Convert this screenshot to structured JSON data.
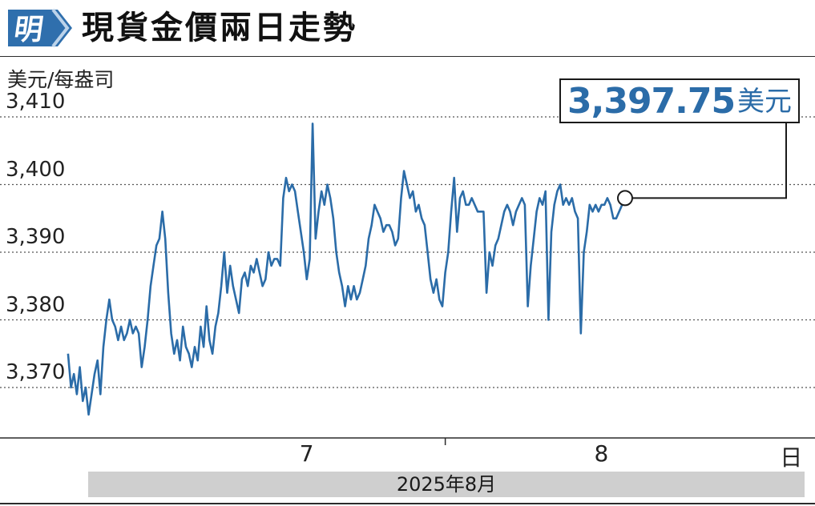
{
  "header": {
    "logo_char": "明",
    "title": "現貨金價兩日走勢"
  },
  "callout": {
    "value": "3,397.75",
    "unit": "美元"
  },
  "colors": {
    "series": "#2b6ca8",
    "logo": "#2f6fad",
    "band": "#cfcfcf"
  },
  "chart_data": {
    "type": "line",
    "title": "現貨金價兩日走勢",
    "ylabel": "美元/每盎司",
    "xlabel": "2025年8月",
    "ylim": [
      3364,
      3412
    ],
    "yticks": [
      3410,
      3400,
      3390,
      3380,
      3370
    ],
    "ytick_labels": [
      "3,410",
      "3,400",
      "3,390",
      "3,380",
      "3,370"
    ],
    "xticks": [
      {
        "label": "7",
        "x": 7.0
      },
      {
        "label": "8",
        "x": 8.0
      },
      {
        "label": "日",
        "x": 8.63
      }
    ],
    "annotation": {
      "text": "3,397.75美元",
      "x": 8.55,
      "y": 3397.75
    },
    "grid": true,
    "series": [
      {
        "values": [
          [
            6.19,
            3375
          ],
          [
            6.2,
            3370
          ],
          [
            6.21,
            3372
          ],
          [
            6.22,
            3369
          ],
          [
            6.23,
            3373
          ],
          [
            6.24,
            3368
          ],
          [
            6.25,
            3370
          ],
          [
            6.26,
            3366
          ],
          [
            6.27,
            3369
          ],
          [
            6.28,
            3372
          ],
          [
            6.29,
            3374
          ],
          [
            6.3,
            3369
          ],
          [
            6.31,
            3376
          ],
          [
            6.32,
            3380
          ],
          [
            6.33,
            3383
          ],
          [
            6.34,
            3380
          ],
          [
            6.35,
            3379
          ],
          [
            6.36,
            3377
          ],
          [
            6.37,
            3379
          ],
          [
            6.38,
            3377
          ],
          [
            6.39,
            3378
          ],
          [
            6.4,
            3380
          ],
          [
            6.41,
            3378
          ],
          [
            6.42,
            3379
          ],
          [
            6.43,
            3378
          ],
          [
            6.44,
            3373
          ],
          [
            6.45,
            3376
          ],
          [
            6.46,
            3380
          ],
          [
            6.47,
            3385
          ],
          [
            6.48,
            3388
          ],
          [
            6.49,
            3391
          ],
          [
            6.5,
            3392
          ],
          [
            6.51,
            3396
          ],
          [
            6.52,
            3392
          ],
          [
            6.53,
            3384
          ],
          [
            6.54,
            3378
          ],
          [
            6.55,
            3375
          ],
          [
            6.56,
            3377
          ],
          [
            6.57,
            3374
          ],
          [
            6.58,
            3379
          ],
          [
            6.59,
            3376
          ],
          [
            6.6,
            3375
          ],
          [
            6.61,
            3373
          ],
          [
            6.62,
            3376
          ],
          [
            6.63,
            3374
          ],
          [
            6.64,
            3379
          ],
          [
            6.65,
            3376
          ],
          [
            6.66,
            3382
          ],
          [
            6.67,
            3377
          ],
          [
            6.68,
            3375
          ],
          [
            6.69,
            3379
          ],
          [
            6.7,
            3381
          ],
          [
            6.71,
            3385
          ],
          [
            6.72,
            3390
          ],
          [
            6.73,
            3384
          ],
          [
            6.74,
            3388
          ],
          [
            6.75,
            3385
          ],
          [
            6.76,
            3383
          ],
          [
            6.77,
            3381
          ],
          [
            6.78,
            3386
          ],
          [
            6.79,
            3387
          ],
          [
            6.8,
            3385
          ],
          [
            6.81,
            3388
          ],
          [
            6.82,
            3387
          ],
          [
            6.83,
            3389
          ],
          [
            6.84,
            3387
          ],
          [
            6.85,
            3385
          ],
          [
            6.86,
            3386
          ],
          [
            6.87,
            3390
          ],
          [
            6.88,
            3388
          ],
          [
            6.89,
            3389
          ],
          [
            6.9,
            3389
          ],
          [
            6.91,
            3388
          ],
          [
            6.92,
            3398
          ],
          [
            6.93,
            3401
          ],
          [
            6.94,
            3399
          ],
          [
            6.95,
            3400
          ],
          [
            6.96,
            3399
          ],
          [
            6.97,
            3396
          ],
          [
            6.98,
            3393
          ],
          [
            6.99,
            3390
          ],
          [
            7.0,
            3386
          ],
          [
            7.01,
            3389
          ],
          [
            7.02,
            3409
          ],
          [
            7.03,
            3392
          ],
          [
            7.04,
            3396
          ],
          [
            7.05,
            3399
          ],
          [
            7.06,
            3397
          ],
          [
            7.07,
            3400
          ],
          [
            7.08,
            3398
          ],
          [
            7.09,
            3395
          ],
          [
            7.1,
            3390
          ],
          [
            7.11,
            3387
          ],
          [
            7.12,
            3385
          ],
          [
            7.13,
            3382
          ],
          [
            7.14,
            3385
          ],
          [
            7.15,
            3383
          ],
          [
            7.16,
            3385
          ],
          [
            7.17,
            3383
          ],
          [
            7.18,
            3384
          ],
          [
            7.19,
            3386
          ],
          [
            7.2,
            3388
          ],
          [
            7.21,
            3392
          ],
          [
            7.22,
            3394
          ],
          [
            7.23,
            3397
          ],
          [
            7.24,
            3396
          ],
          [
            7.25,
            3395
          ],
          [
            7.26,
            3393
          ],
          [
            7.27,
            3394
          ],
          [
            7.28,
            3394
          ],
          [
            7.29,
            3393
          ],
          [
            7.3,
            3391
          ],
          [
            7.31,
            3392
          ],
          [
            7.32,
            3398
          ],
          [
            7.33,
            3402
          ],
          [
            7.34,
            3400
          ],
          [
            7.35,
            3398
          ],
          [
            7.36,
            3399
          ],
          [
            7.37,
            3396
          ],
          [
            7.38,
            3397
          ],
          [
            7.39,
            3395
          ],
          [
            7.4,
            3394
          ],
          [
            7.41,
            3390
          ],
          [
            7.42,
            3386
          ],
          [
            7.43,
            3384
          ],
          [
            7.44,
            3386
          ],
          [
            7.45,
            3383
          ],
          [
            7.46,
            3382
          ],
          [
            7.47,
            3387
          ],
          [
            7.48,
            3390
          ],
          [
            7.49,
            3396
          ],
          [
            7.5,
            3401
          ],
          [
            7.51,
            3393
          ],
          [
            7.52,
            3398
          ],
          [
            7.53,
            3399
          ],
          [
            7.54,
            3397
          ],
          [
            7.55,
            3397
          ],
          [
            7.56,
            3398
          ],
          [
            7.57,
            3397
          ],
          [
            7.58,
            3396
          ],
          [
            7.59,
            3396
          ],
          [
            7.6,
            3396
          ],
          [
            7.61,
            3384
          ],
          [
            7.62,
            3390
          ],
          [
            7.63,
            3388
          ],
          [
            7.64,
            3391
          ],
          [
            7.65,
            3392
          ],
          [
            7.66,
            3394
          ],
          [
            7.67,
            3396
          ],
          [
            7.68,
            3397
          ],
          [
            7.69,
            3396
          ],
          [
            7.7,
            3394
          ],
          [
            7.71,
            3396
          ],
          [
            7.72,
            3397
          ],
          [
            7.73,
            3398
          ],
          [
            7.74,
            3397
          ],
          [
            7.75,
            3382
          ],
          [
            7.76,
            3388
          ],
          [
            7.77,
            3392
          ],
          [
            7.78,
            3396
          ],
          [
            7.79,
            3398
          ],
          [
            7.8,
            3397
          ],
          [
            7.81,
            3399
          ],
          [
            7.82,
            3380
          ],
          [
            7.83,
            3393
          ],
          [
            7.84,
            3397
          ],
          [
            7.85,
            3399
          ],
          [
            7.86,
            3400
          ],
          [
            7.87,
            3397
          ],
          [
            7.88,
            3398
          ],
          [
            7.89,
            3397
          ],
          [
            7.9,
            3398
          ],
          [
            7.91,
            3396
          ],
          [
            7.92,
            3395
          ],
          [
            7.93,
            3378
          ],
          [
            7.94,
            3390
          ],
          [
            7.95,
            3393
          ],
          [
            7.96,
            3397
          ],
          [
            7.97,
            3396
          ],
          [
            7.98,
            3397
          ],
          [
            7.99,
            3396
          ],
          [
            8.0,
            3397
          ],
          [
            8.01,
            3397
          ],
          [
            8.02,
            3398
          ],
          [
            8.03,
            3397
          ],
          [
            8.04,
            3395
          ],
          [
            8.05,
            3395
          ],
          [
            8.06,
            3396
          ],
          [
            8.07,
            3397
          ],
          [
            8.08,
            3398
          ]
        ]
      }
    ]
  }
}
